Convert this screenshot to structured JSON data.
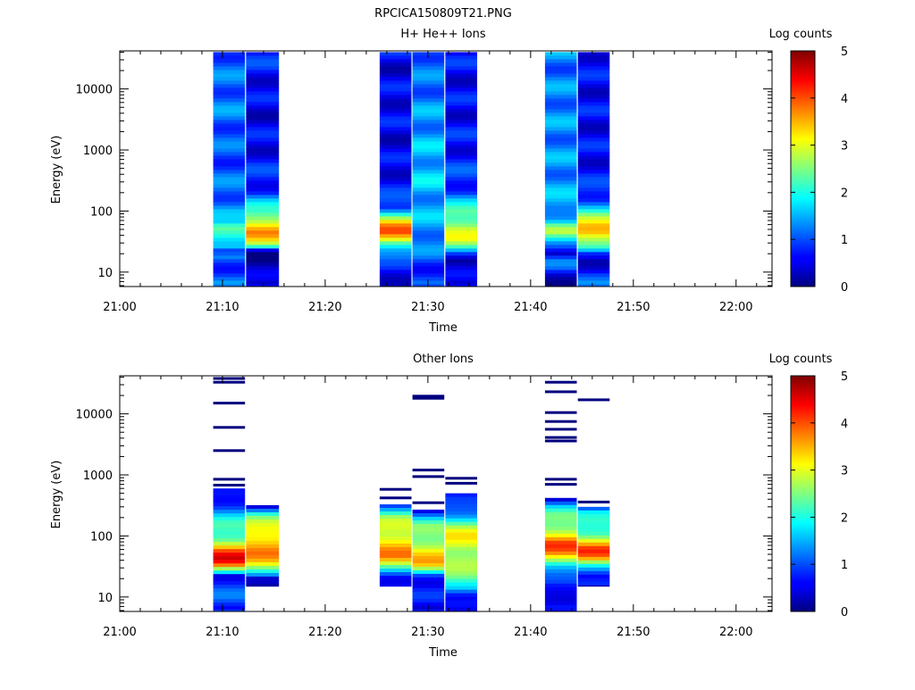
{
  "figure_title": "RPCICA150809T21.PNG",
  "colorbar": {
    "label": "Log counts",
    "min": 0,
    "max": 5,
    "ticks": [
      "0",
      "1",
      "2",
      "3",
      "4",
      "5"
    ]
  },
  "chart_data": [
    {
      "type": "heatmap",
      "title": "H+ He++ Ions",
      "xlabel": "Time",
      "ylabel": "Energy (eV)",
      "x_ticks": [
        "21:00",
        "21:10",
        "21:20",
        "21:30",
        "21:40",
        "21:50",
        "22:00"
      ],
      "y_ticks": [
        "10",
        "100",
        "1000",
        "10000"
      ],
      "x_range_minutes": [
        0,
        63.5
      ],
      "y_range_eV": [
        5.8,
        42000
      ],
      "y_scale": "log",
      "colorbar_label": "Log counts",
      "time_bins": [
        {
          "t_start": 9.1,
          "t_end": 12.2,
          "e_min": 5.8,
          "e_max": 40000,
          "profile": [
            [
              5.8,
              1.2
            ],
            [
              8,
              1.1
            ],
            [
              10,
              1.0
            ],
            [
              14,
              1.0
            ],
            [
              18,
              1.1
            ],
            [
              22,
              0.4
            ],
            [
              25,
              1.3
            ],
            [
              30,
              1.6
            ],
            [
              35,
              2.0
            ],
            [
              40,
              2.4
            ],
            [
              48,
              2.6
            ],
            [
              55,
              2.5
            ],
            [
              65,
              1.5
            ],
            [
              80,
              1.3
            ],
            [
              100,
              1.4
            ],
            [
              150,
              1.2
            ],
            [
              300,
              1.1
            ],
            [
              1000,
              1.0
            ],
            [
              5000,
              1.2
            ],
            [
              20000,
              1.1
            ],
            [
              40000,
              1.1
            ]
          ]
        },
        {
          "t_start": 12.3,
          "t_end": 15.5,
          "e_min": 5.8,
          "e_max": 40000,
          "profile": [
            [
              5.8,
              0.3
            ],
            [
              9,
              0.3
            ],
            [
              22,
              0.3
            ],
            [
              25,
              1.8
            ],
            [
              30,
              2.6
            ],
            [
              38,
              3.3
            ],
            [
              45,
              3.7
            ],
            [
              55,
              3.6
            ],
            [
              65,
              3.2
            ],
            [
              80,
              2.7
            ],
            [
              100,
              2.0
            ],
            [
              130,
              1.6
            ],
            [
              200,
              0.9
            ],
            [
              1000,
              0.6
            ],
            [
              5000,
              0.5
            ],
            [
              20000,
              0.7
            ],
            [
              40000,
              0.8
            ]
          ]
        },
        {
          "t_start": 25.3,
          "t_end": 28.4,
          "e_min": 5.8,
          "e_max": 40000,
          "profile": [
            [
              5.8,
              0.6
            ],
            [
              10,
              0.6
            ],
            [
              15,
              0.7
            ],
            [
              22,
              1.6
            ],
            [
              28,
              2.4
            ],
            [
              35,
              3.3
            ],
            [
              45,
              3.8
            ],
            [
              55,
              3.6
            ],
            [
              70,
              3.0
            ],
            [
              90,
              2.2
            ],
            [
              110,
              1.2
            ],
            [
              200,
              0.7
            ],
            [
              1000,
              0.5
            ],
            [
              5000,
              0.6
            ],
            [
              20000,
              0.5
            ],
            [
              40000,
              0.6
            ]
          ]
        },
        {
          "t_start": 28.5,
          "t_end": 31.6,
          "e_min": 5.8,
          "e_max": 40000,
          "profile": [
            [
              5.8,
              0.9
            ],
            [
              10,
              0.9
            ],
            [
              20,
              1.1
            ],
            [
              30,
              1.2
            ],
            [
              50,
              1.5
            ],
            [
              100,
              1.4
            ],
            [
              300,
              1.6
            ],
            [
              1000,
              1.5
            ],
            [
              5000,
              1.3
            ],
            [
              20000,
              1.1
            ],
            [
              40000,
              1.2
            ]
          ]
        },
        {
          "t_start": 31.7,
          "t_end": 34.8,
          "e_min": 5.8,
          "e_max": 40000,
          "profile": [
            [
              5.8,
              0.3
            ],
            [
              10,
              0.4
            ],
            [
              15,
              0.4
            ],
            [
              20,
              1.2
            ],
            [
              25,
              2.0
            ],
            [
              35,
              2.8
            ],
            [
              50,
              3.0
            ],
            [
              70,
              2.6
            ],
            [
              100,
              2.2
            ],
            [
              130,
              1.6
            ],
            [
              200,
              1.0
            ],
            [
              1000,
              0.7
            ],
            [
              5000,
              0.6
            ],
            [
              20000,
              0.6
            ],
            [
              40000,
              0.7
            ]
          ]
        },
        {
          "t_start": 41.4,
          "t_end": 44.5,
          "e_min": 5.8,
          "e_max": 40000,
          "profile": [
            [
              5.8,
              0.3
            ],
            [
              9,
              0.6
            ],
            [
              12,
              1.0
            ],
            [
              15,
              1.0
            ],
            [
              20,
              0.4
            ],
            [
              25,
              1.3
            ],
            [
              35,
              2.0
            ],
            [
              45,
              2.6
            ],
            [
              55,
              2.3
            ],
            [
              70,
              1.3
            ],
            [
              100,
              1.6
            ],
            [
              200,
              1.4
            ],
            [
              1000,
              1.3
            ],
            [
              5000,
              1.3
            ],
            [
              20000,
              1.2
            ],
            [
              40000,
              1.3
            ]
          ]
        },
        {
          "t_start": 44.6,
          "t_end": 47.7,
          "e_min": 5.8,
          "e_max": 40000,
          "profile": [
            [
              5.8,
              1.1
            ],
            [
              9,
              1.1
            ],
            [
              15,
              0.3
            ],
            [
              20,
              0.5
            ],
            [
              25,
              1.8
            ],
            [
              35,
              3.0
            ],
            [
              45,
              3.8
            ],
            [
              55,
              3.7
            ],
            [
              70,
              2.8
            ],
            [
              100,
              1.8
            ],
            [
              150,
              1.1
            ],
            [
              300,
              0.7
            ],
            [
              1000,
              0.6
            ],
            [
              5000,
              0.6
            ],
            [
              20000,
              0.6
            ],
            [
              40000,
              0.7
            ]
          ]
        }
      ]
    },
    {
      "type": "heatmap",
      "title": "Other Ions",
      "xlabel": "Time",
      "ylabel": "Energy (eV)",
      "x_ticks": [
        "21:00",
        "21:10",
        "21:20",
        "21:30",
        "21:40",
        "21:50",
        "22:00"
      ],
      "y_ticks": [
        "10",
        "100",
        "1000",
        "10000"
      ],
      "x_range_minutes": [
        0,
        63.5
      ],
      "y_range_eV": [
        5.8,
        42000
      ],
      "y_scale": "log",
      "colorbar_label": "Log counts",
      "time_bins": [
        {
          "t_start": 9.1,
          "t_end": 12.2,
          "e_min": 5.8,
          "e_max": 600,
          "profile": [
            [
              5.8,
              0.9
            ],
            [
              10,
              1.0
            ],
            [
              15,
              0.8
            ],
            [
              22,
              0.8
            ],
            [
              25,
              2.0
            ],
            [
              30,
              3.0
            ],
            [
              35,
              4.0
            ],
            [
              45,
              4.3
            ],
            [
              55,
              4.0
            ],
            [
              70,
              3.3
            ],
            [
              90,
              2.6
            ],
            [
              120,
              2.1
            ],
            [
              180,
              1.8
            ],
            [
              260,
              1.4
            ],
            [
              400,
              0.8
            ],
            [
              600,
              0.3
            ]
          ],
          "lines": [
            680,
            850,
            2500,
            6000,
            15000,
            33000,
            38000
          ]
        },
        {
          "t_start": 12.3,
          "t_end": 15.5,
          "e_min": 15,
          "e_max": 320,
          "profile": [
            [
              15,
              0.4
            ],
            [
              20,
              0.6
            ],
            [
              24,
              2.0
            ],
            [
              30,
              2.6
            ],
            [
              40,
              3.2
            ],
            [
              55,
              3.7
            ],
            [
              75,
              3.7
            ],
            [
              100,
              3.4
            ],
            [
              150,
              2.7
            ],
            [
              220,
              2.2
            ],
            [
              300,
              0.8
            ]
          ],
          "lines": []
        },
        {
          "t_start": 25.3,
          "t_end": 28.4,
          "e_min": 15,
          "e_max": 330,
          "profile": [
            [
              15,
              0.3
            ],
            [
              20,
              0.6
            ],
            [
              26,
              1.8
            ],
            [
              32,
              2.6
            ],
            [
              45,
              3.5
            ],
            [
              60,
              3.5
            ],
            [
              90,
              3.3
            ],
            [
              130,
              3.0
            ],
            [
              200,
              2.4
            ],
            [
              300,
              1.2
            ]
          ],
          "lines": [
            420,
            580
          ]
        },
        {
          "t_start": 28.5,
          "t_end": 31.6,
          "e_min": 5.8,
          "e_max": 270,
          "profile": [
            [
              5.8,
              0.6
            ],
            [
              12,
              0.6
            ],
            [
              16,
              0.6
            ],
            [
              22,
              1.2
            ],
            [
              28,
              2.5
            ],
            [
              35,
              3.3
            ],
            [
              50,
              3.2
            ],
            [
              70,
              3.0
            ],
            [
              100,
              2.6
            ],
            [
              150,
              2.2
            ],
            [
              220,
              1.2
            ],
            [
              270,
              0.6
            ]
          ],
          "lines": [
            350,
            940,
            1200,
            18000,
            19500
          ]
        },
        {
          "t_start": 31.7,
          "t_end": 34.8,
          "e_min": 5.8,
          "e_max": 500,
          "profile": [
            [
              5.8,
              0.3
            ],
            [
              10,
              0.4
            ],
            [
              14,
              2.0
            ],
            [
              20,
              2.4
            ],
            [
              30,
              2.4
            ],
            [
              45,
              2.8
            ],
            [
              70,
              3.1
            ],
            [
              100,
              3.0
            ],
            [
              150,
              2.5
            ],
            [
              220,
              1.6
            ],
            [
              350,
              0.7
            ],
            [
              500,
              0.4
            ]
          ],
          "lines": [
            730,
            880
          ]
        },
        {
          "t_start": 41.4,
          "t_end": 44.5,
          "e_min": 5.8,
          "e_max": 420,
          "profile": [
            [
              5.8,
              0.8
            ],
            [
              10,
              0.8
            ],
            [
              15,
              0.4
            ],
            [
              22,
              0.9
            ],
            [
              30,
              1.8
            ],
            [
              40,
              2.9
            ],
            [
              55,
              3.7
            ],
            [
              75,
              3.9
            ],
            [
              100,
              3.3
            ],
            [
              150,
              2.7
            ],
            [
              220,
              2.2
            ],
            [
              320,
              1.3
            ],
            [
              420,
              0.4
            ]
          ],
          "lines": [
            700,
            850,
            3600,
            4100,
            5600,
            7500,
            10500,
            23000,
            33000
          ]
        },
        {
          "t_start": 44.6,
          "t_end": 47.7,
          "e_min": 15,
          "e_max": 300,
          "profile": [
            [
              15,
              0.5
            ],
            [
              22,
              0.8
            ],
            [
              27,
              1.6
            ],
            [
              35,
              2.4
            ],
            [
              45,
              3.6
            ],
            [
              60,
              4.0
            ],
            [
              80,
              3.3
            ],
            [
              110,
              2.5
            ],
            [
              160,
              1.9
            ],
            [
              250,
              1.6
            ],
            [
              300,
              0.8
            ]
          ],
          "lines": [
            360,
            17000
          ]
        }
      ]
    }
  ]
}
